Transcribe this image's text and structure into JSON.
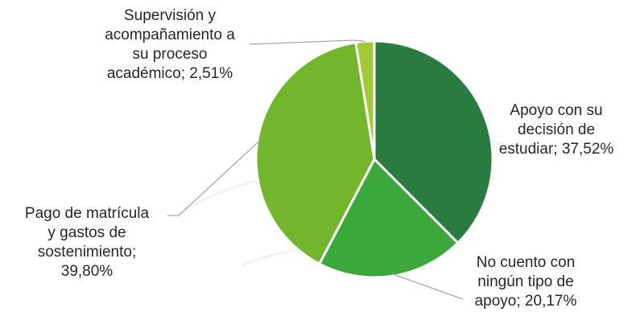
{
  "chart_data": {
    "type": "pie",
    "title": "",
    "slices": [
      {
        "label": "Apoyo con su decisión de estudiar",
        "value": 37.52,
        "display": "37,52%",
        "color": "#2a7b3f"
      },
      {
        "label": "No cuento con ningún tipo de apoyo",
        "value": 20.17,
        "display": "20,17%",
        "color": "#3aa83a"
      },
      {
        "label": "Pago de matrícula y gastos de sostenimiento",
        "value": 39.8,
        "display": "39,80%",
        "color": "#72b62d"
      },
      {
        "label": "Supervisión y acompañamiento a su proceso académico",
        "value": 2.51,
        "display": "2,51%",
        "color": "#a3c935"
      }
    ],
    "data_labels": [
      [
        "Apoyo con su",
        "decisión de",
        "estudiar; 37,52%"
      ],
      [
        "No cuento con",
        "ningún tipo de",
        "apoyo; 20,17%"
      ],
      [
        "Pago de matrícula",
        "y gastos de",
        "sostenimiento;",
        "39,80%"
      ],
      [
        "Supervisión y",
        "acompañamiento a",
        "su proceso",
        "académico; 2,51%"
      ]
    ],
    "legend": "none"
  }
}
